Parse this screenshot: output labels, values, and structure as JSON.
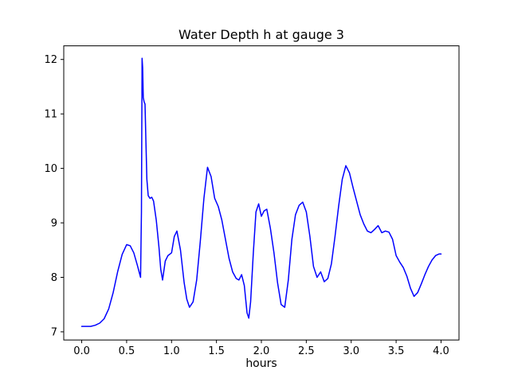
{
  "figure": {
    "background": "#ffffff",
    "axes_color": "#000000"
  },
  "chart_data": {
    "type": "line",
    "title": "Water Depth h at gauge 3",
    "xlabel": "hours",
    "ylabel": "",
    "grid": false,
    "legend": null,
    "xlim": [
      -0.2,
      4.2
    ],
    "ylim": [
      6.85,
      12.25
    ],
    "xticks": {
      "values": [
        0.0,
        0.5,
        1.0,
        1.5,
        2.0,
        2.5,
        3.0,
        3.5,
        4.0
      ],
      "labels": [
        "0.0",
        "0.5",
        "1.0",
        "1.5",
        "2.0",
        "2.5",
        "3.0",
        "3.5",
        "4.0"
      ]
    },
    "yticks": {
      "values": [
        7,
        8,
        9,
        10,
        11,
        12
      ],
      "labels": [
        "7",
        "8",
        "9",
        "10",
        "11",
        "12"
      ]
    },
    "series": [
      {
        "name": "water-depth-h",
        "color": "#0000ff",
        "line_width": 1.5,
        "x": [
          0.0,
          0.05,
          0.1,
          0.15,
          0.2,
          0.25,
          0.3,
          0.35,
          0.4,
          0.45,
          0.5,
          0.54,
          0.58,
          0.62,
          0.645,
          0.655,
          0.665,
          0.672,
          0.678,
          0.685,
          0.695,
          0.705,
          0.715,
          0.725,
          0.74,
          0.76,
          0.78,
          0.8,
          0.83,
          0.86,
          0.88,
          0.9,
          0.93,
          0.96,
          1.0,
          1.03,
          1.06,
          1.1,
          1.14,
          1.17,
          1.2,
          1.24,
          1.28,
          1.32,
          1.36,
          1.4,
          1.44,
          1.48,
          1.52,
          1.56,
          1.6,
          1.64,
          1.68,
          1.72,
          1.75,
          1.78,
          1.81,
          1.84,
          1.86,
          1.88,
          1.91,
          1.94,
          1.97,
          2.0,
          2.03,
          2.06,
          2.1,
          2.14,
          2.18,
          2.22,
          2.26,
          2.3,
          2.34,
          2.38,
          2.42,
          2.46,
          2.5,
          2.54,
          2.58,
          2.62,
          2.66,
          2.7,
          2.74,
          2.78,
          2.82,
          2.86,
          2.9,
          2.94,
          2.98,
          3.02,
          3.06,
          3.1,
          3.14,
          3.18,
          3.22,
          3.26,
          3.3,
          3.34,
          3.38,
          3.42,
          3.46,
          3.5,
          3.54,
          3.58,
          3.62,
          3.66,
          3.7,
          3.74,
          3.78,
          3.82,
          3.86,
          3.9,
          3.94,
          3.98,
          4.0
        ],
        "y": [
          7.1,
          7.1,
          7.1,
          7.12,
          7.16,
          7.24,
          7.42,
          7.72,
          8.1,
          8.42,
          8.6,
          8.58,
          8.45,
          8.22,
          8.06,
          8.0,
          9.2,
          12.02,
          11.85,
          11.3,
          11.22,
          11.18,
          10.5,
          9.8,
          9.5,
          9.45,
          9.47,
          9.4,
          9.05,
          8.55,
          8.15,
          7.95,
          8.3,
          8.4,
          8.45,
          8.75,
          8.85,
          8.5,
          7.9,
          7.6,
          7.45,
          7.55,
          7.95,
          8.65,
          9.45,
          10.02,
          9.85,
          9.45,
          9.3,
          9.05,
          8.7,
          8.35,
          8.1,
          7.98,
          7.95,
          8.05,
          7.85,
          7.35,
          7.25,
          7.55,
          8.45,
          9.2,
          9.35,
          9.12,
          9.22,
          9.25,
          8.9,
          8.45,
          7.9,
          7.5,
          7.45,
          7.95,
          8.7,
          9.15,
          9.32,
          9.38,
          9.2,
          8.75,
          8.2,
          8.0,
          8.1,
          7.92,
          7.98,
          8.25,
          8.75,
          9.3,
          9.8,
          10.05,
          9.92,
          9.65,
          9.4,
          9.15,
          8.98,
          8.85,
          8.82,
          8.88,
          8.95,
          8.82,
          8.85,
          8.83,
          8.7,
          8.4,
          8.28,
          8.18,
          8.02,
          7.8,
          7.65,
          7.72,
          7.88,
          8.05,
          8.2,
          8.32,
          8.4,
          8.43,
          8.43
        ]
      }
    ]
  }
}
